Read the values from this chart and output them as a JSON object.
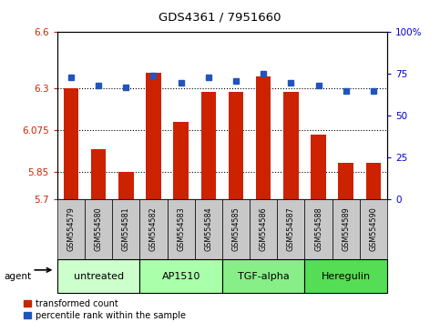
{
  "title": "GDS4361 / 7951660",
  "samples": [
    "GSM554579",
    "GSM554580",
    "GSM554581",
    "GSM554582",
    "GSM554583",
    "GSM554584",
    "GSM554585",
    "GSM554586",
    "GSM554587",
    "GSM554588",
    "GSM554589",
    "GSM554590"
  ],
  "bar_values": [
    6.3,
    5.97,
    5.85,
    6.38,
    6.12,
    6.28,
    6.28,
    6.36,
    6.28,
    6.05,
    5.9,
    5.9
  ],
  "dot_values": [
    73,
    68,
    67,
    74,
    70,
    73,
    71,
    75,
    70,
    68,
    65,
    65
  ],
  "ylim_left": [
    5.7,
    6.6
  ],
  "ylim_right": [
    0,
    100
  ],
  "yticks_left": [
    5.7,
    5.85,
    6.075,
    6.3,
    6.6
  ],
  "ytick_labels_left": [
    "5.7",
    "5.85",
    "6.075",
    "6.3",
    "6.6"
  ],
  "yticks_right": [
    0,
    25,
    50,
    75,
    100
  ],
  "ytick_labels_right": [
    "0",
    "25",
    "50",
    "75",
    "100%"
  ],
  "hlines": [
    5.85,
    6.075,
    6.3
  ],
  "bar_color": "#cc2200",
  "dot_color": "#2255bb",
  "groups": [
    {
      "label": "untreated",
      "start": 0,
      "end": 3,
      "color": "#ccffcc"
    },
    {
      "label": "AP1510",
      "start": 3,
      "end": 6,
      "color": "#aaffaa"
    },
    {
      "label": "TGF-alpha",
      "start": 6,
      "end": 9,
      "color": "#88ee88"
    },
    {
      "label": "Heregulin",
      "start": 9,
      "end": 12,
      "color": "#55dd55"
    }
  ],
  "agent_label": "agent",
  "legend_bar_label": "transformed count",
  "legend_dot_label": "percentile rank within the sample",
  "background_color": "#ffffff",
  "plot_bg_color": "#ffffff",
  "tick_label_color_left": "#cc2200",
  "tick_label_color_right": "#0000cc",
  "sample_box_color": "#c8c8c8"
}
